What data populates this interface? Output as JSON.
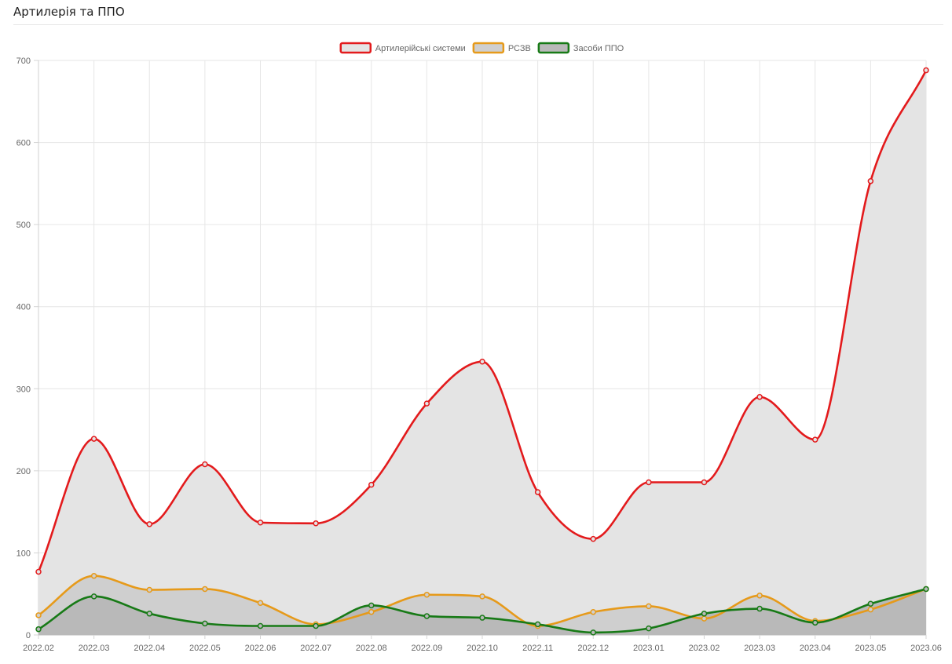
{
  "panel": {
    "title": "Артилерія та ППО"
  },
  "chart_data": {
    "type": "area",
    "categories": [
      "2022.02",
      "2022.03",
      "2022.04",
      "2022.05",
      "2022.06",
      "2022.07",
      "2022.08",
      "2022.09",
      "2022.10",
      "2022.11",
      "2022.12",
      "2023.01",
      "2023.02",
      "2023.03",
      "2023.04",
      "2023.05",
      "2023.06"
    ],
    "series": [
      {
        "name": "Артилерійські системи",
        "color": "#e31a1c",
        "fill": "#e4e4e4",
        "values": [
          77,
          239,
          135,
          208,
          137,
          136,
          183,
          282,
          333,
          174,
          117,
          186,
          186,
          290,
          238,
          553,
          688
        ]
      },
      {
        "name": "РСЗВ",
        "color": "#e69a1a",
        "fill": "#cfcfcf",
        "values": [
          24,
          72,
          55,
          56,
          39,
          13,
          28,
          49,
          47,
          11,
          28,
          35,
          20,
          48,
          17,
          31,
          56
        ]
      },
      {
        "name": "Засоби ППО",
        "color": "#177a16",
        "fill": "#b9b9b9",
        "values": [
          7,
          47,
          26,
          14,
          11,
          11,
          36,
          23,
          21,
          13,
          3,
          8,
          26,
          32,
          15,
          38,
          56
        ]
      }
    ],
    "ylim": [
      0,
      700
    ],
    "yticks": [
      0,
      100,
      200,
      300,
      400,
      500,
      600,
      700
    ],
    "grid": true,
    "legend_position": "top-center"
  }
}
